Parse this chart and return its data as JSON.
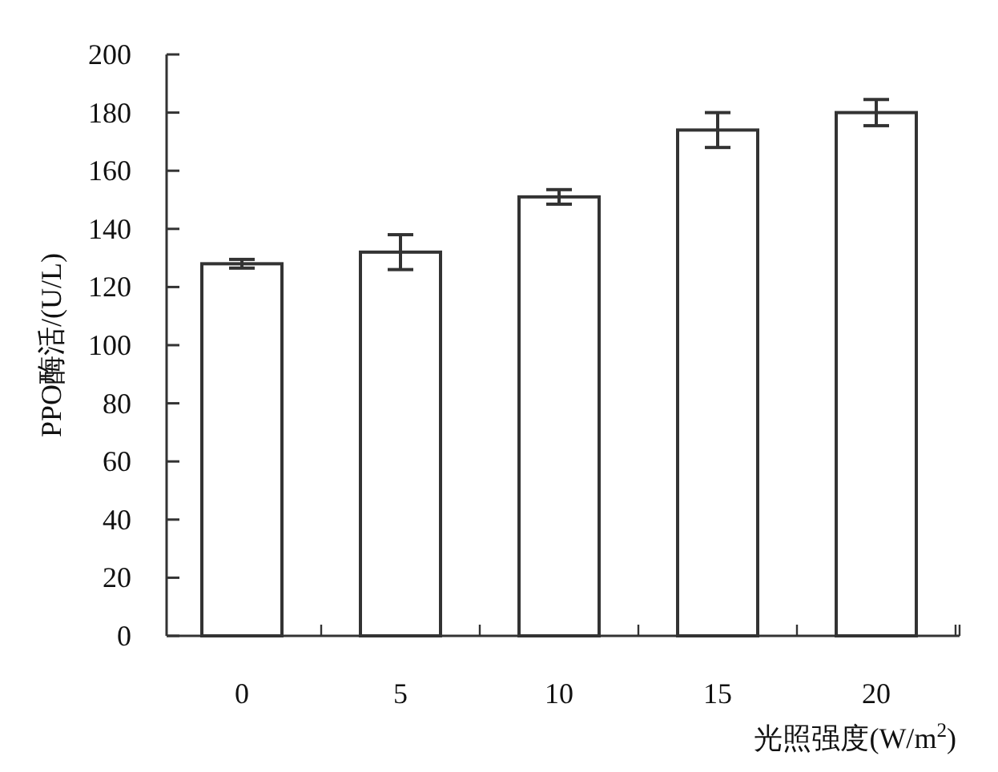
{
  "chart_data": {
    "type": "bar",
    "categories": [
      "0",
      "5",
      "10",
      "15",
      "20"
    ],
    "values": [
      128,
      132,
      151,
      174,
      180
    ],
    "errors": [
      1.5,
      6,
      2.5,
      6,
      4.5
    ],
    "color": "#ffffff",
    "xlabel": "光照强度(W/m$^{2}$)",
    "ylabel": "PPO酶活/(U/L)",
    "ylim": [
      0,
      200
    ],
    "yticks": [
      0,
      20,
      40,
      60,
      80,
      100,
      120,
      140,
      160,
      180,
      200
    ],
    "grid": false
  }
}
